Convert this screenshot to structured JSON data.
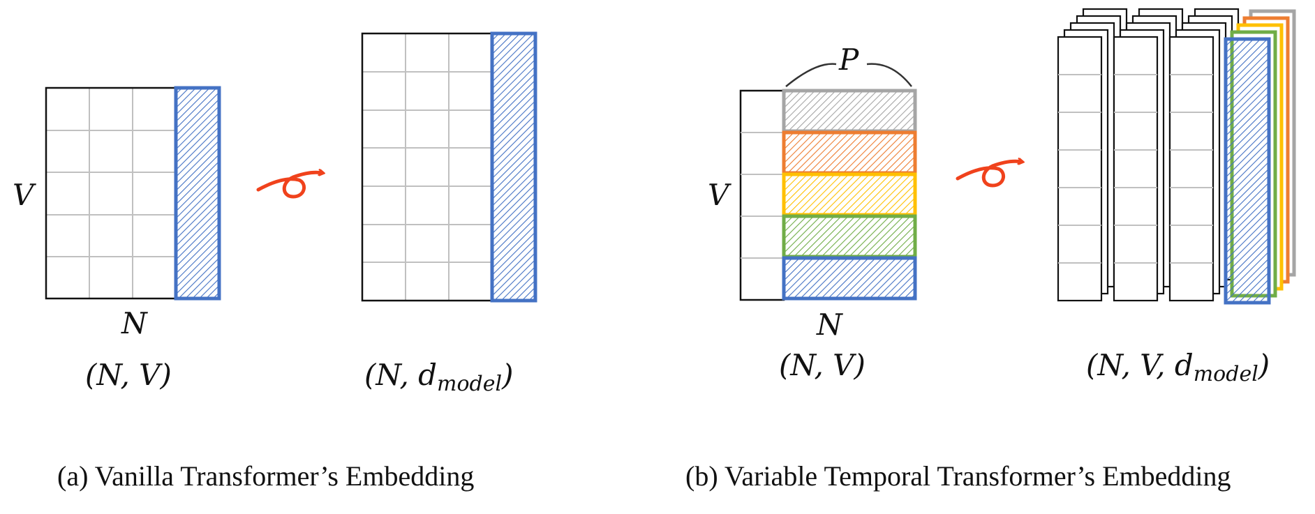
{
  "colors": {
    "border": "#111111",
    "grid": "#c0c0c0",
    "blue": "#4472c4",
    "gray": "#a5a5a5",
    "orange": "#ed7d31",
    "yellow": "#ffc000",
    "green": "#70ad47",
    "arrow": "#f0421c"
  },
  "panel_a": {
    "left_matrix": {
      "row_label": "V",
      "col_label": "N",
      "shape_label": "(N, V)"
    },
    "right_matrix": {
      "shape_label_base": "(N, d",
      "shape_label_sub": "model",
      "shape_label_end": ")"
    },
    "caption": "(a) Vanilla Transformer’s Embedding"
  },
  "panel_b": {
    "left_matrix": {
      "patch_label": "P",
      "row_label": "V",
      "col_label": "N",
      "shape_label": "(N, V)"
    },
    "right_stack": {
      "shape_label_base": "(N, V, d",
      "shape_label_sub": "model",
      "shape_label_end": ")"
    },
    "caption": "(b) Variable Temporal Transformer’s Embedding"
  }
}
